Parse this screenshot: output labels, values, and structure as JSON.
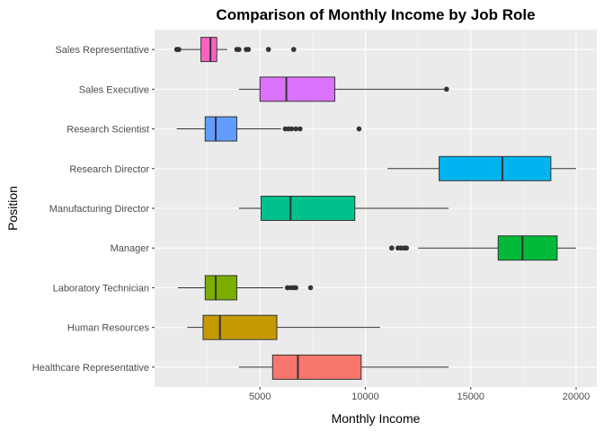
{
  "chart_data": {
    "type": "boxplot",
    "title": "Comparison of Monthly Income by Job Role",
    "xlabel": "Monthly Income",
    "ylabel": "Position",
    "xlim": [
      0,
      20500
    ],
    "x_ticks": [
      5000,
      10000,
      15000,
      20000
    ],
    "x_tick_labels": [
      "5000",
      "10000",
      "15000",
      "20000"
    ],
    "grid": true,
    "legend": "none",
    "categories": [
      "Healthcare Representative",
      "Human Resources",
      "Laboratory Technician",
      "Manager",
      "Manufacturing Director",
      "Research Director",
      "Research Scientist",
      "Sales Executive",
      "Sales Representative"
    ],
    "series": [
      {
        "category": "Healthcare Representative",
        "color": "#F8766D",
        "min": 4000,
        "q1": 5600,
        "median": 6800,
        "q3": 9800,
        "max": 13950,
        "outliers": []
      },
      {
        "category": "Human Resources",
        "color": "#C49A00",
        "min": 1550,
        "q1": 2300,
        "median": 3100,
        "q3": 5800,
        "max": 10700,
        "outliers": []
      },
      {
        "category": "Laboratory Technician",
        "color": "#7CAE00",
        "min": 1100,
        "q1": 2400,
        "median": 2900,
        "q3": 3900,
        "max": 6100,
        "outliers": [
          6300,
          6450,
          6600,
          6700,
          7400
        ]
      },
      {
        "category": "Manager",
        "color": "#00BA38",
        "min": 12500,
        "q1": 16300,
        "median": 17450,
        "q3": 19100,
        "max": 20000,
        "outliers": [
          11250,
          11550,
          11700,
          11850,
          11950
        ]
      },
      {
        "category": "Manufacturing Director",
        "color": "#00C08B",
        "min": 4000,
        "q1": 5050,
        "median": 6450,
        "q3": 9500,
        "max": 13950,
        "outliers": []
      },
      {
        "category": "Research Director",
        "color": "#00B4F0",
        "min": 11050,
        "q1": 13500,
        "median": 16500,
        "q3": 18800,
        "max": 20000,
        "outliers": []
      },
      {
        "category": "Research Scientist",
        "color": "#619CFF",
        "min": 1050,
        "q1": 2400,
        "median": 2900,
        "q3": 3900,
        "max": 6000,
        "outliers": [
          6200,
          6350,
          6500,
          6700,
          6900,
          9700
        ]
      },
      {
        "category": "Sales Executive",
        "color": "#DB72FB",
        "min": 4000,
        "q1": 5000,
        "median": 6250,
        "q3": 8550,
        "max": 13850,
        "outliers": [
          13850
        ]
      },
      {
        "category": "Sales Representative",
        "color": "#FF61C3",
        "min": 1200,
        "q1": 2200,
        "median": 2650,
        "q3": 2950,
        "max": 3450,
        "outliers": [
          1050,
          1100,
          1150,
          3900,
          4000,
          4350,
          4450,
          5400,
          6600
        ]
      }
    ]
  }
}
